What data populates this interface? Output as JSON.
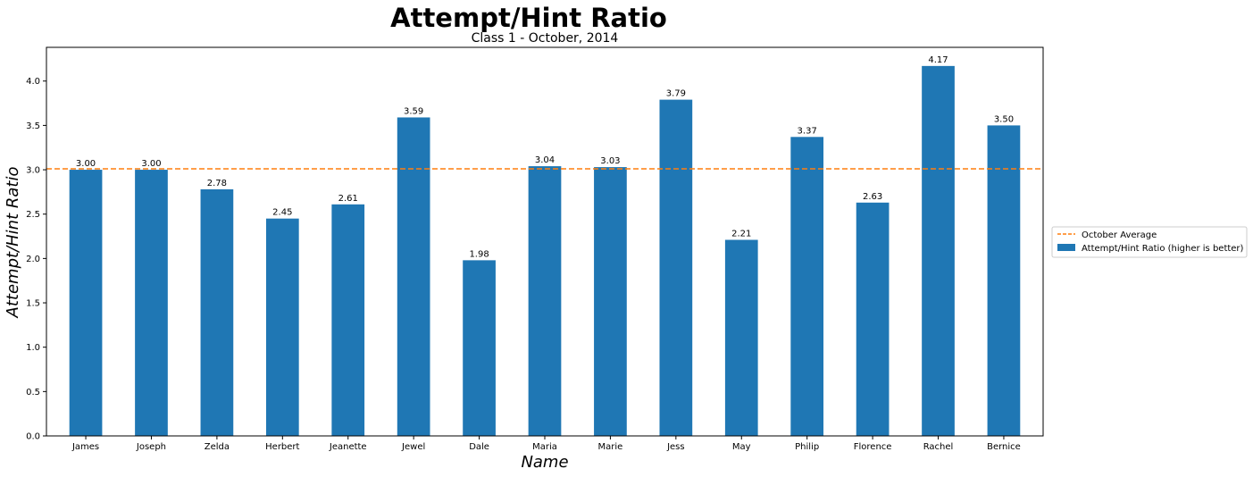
{
  "chart_data": {
    "type": "bar",
    "title": "Attempt/Hint Ratio",
    "subtitle": "Class 1 - October, 2014",
    "xlabel": "Name",
    "ylabel": "Attempt/Hint Ratio",
    "categories": [
      "James",
      "Joseph",
      "Zelda",
      "Herbert",
      "Jeanette",
      "Jewel",
      "Dale",
      "Maria",
      "Marie",
      "Jess",
      "May",
      "Philip",
      "Florence",
      "Rachel",
      "Bernice"
    ],
    "series": [
      {
        "name": "Attempt/Hint Ratio (higher is better)",
        "values": [
          3.0,
          3.0,
          2.78,
          2.45,
          2.61,
          3.59,
          1.98,
          3.04,
          3.03,
          3.79,
          2.21,
          3.37,
          2.63,
          4.17,
          3.5
        ],
        "value_labels": [
          "3.00",
          "3.00",
          "2.78",
          "2.45",
          "2.61",
          "3.59",
          "1.98",
          "3.04",
          "3.03",
          "3.79",
          "2.21",
          "3.37",
          "2.63",
          "4.17",
          "3.50"
        ],
        "color": "#1f77b4"
      }
    ],
    "reference_line": {
      "name": "October Average",
      "value": 3.01,
      "color": "#ff7f0e",
      "style": "dashed"
    },
    "ylim": [
      0,
      4.38
    ],
    "yticks": [
      0.0,
      0.5,
      1.0,
      1.5,
      2.0,
      2.5,
      3.0,
      3.5,
      4.0
    ],
    "ytick_labels": [
      "0.0",
      "0.5",
      "1.0",
      "1.5",
      "2.0",
      "2.5",
      "3.0",
      "3.5",
      "4.0"
    ],
    "grid": false,
    "legend": {
      "placement": "outside-right",
      "entries": [
        "October Average",
        "Attempt/Hint Ratio (higher is better)"
      ]
    }
  }
}
